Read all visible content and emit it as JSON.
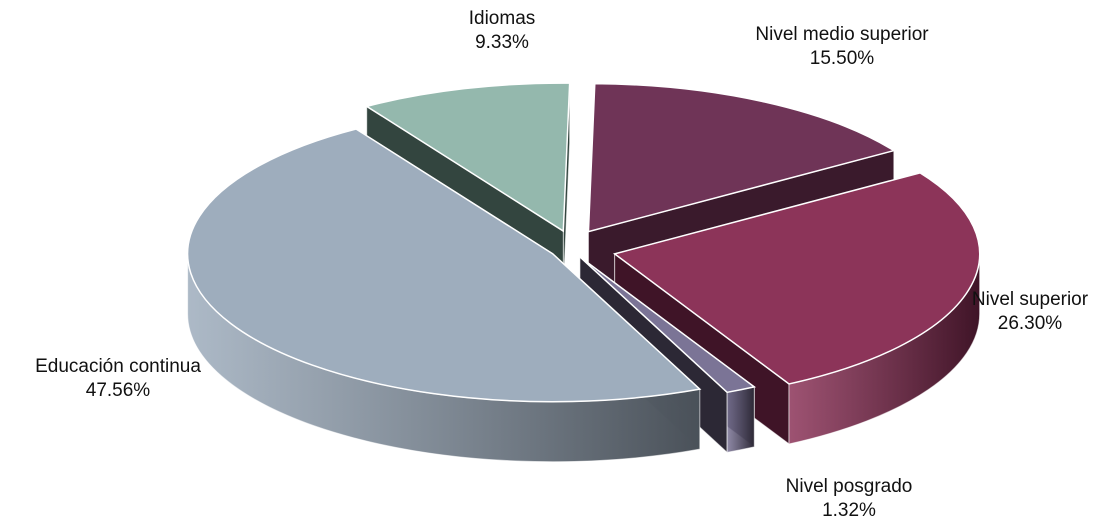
{
  "chart_data": {
    "type": "pie",
    "style": "3d-exploded",
    "legend": "none",
    "slices": [
      {
        "label": "Nivel medio superior",
        "value": 15.5,
        "value_text": "15.50%",
        "color": "#6f3457",
        "side_color": "#3a1a2c"
      },
      {
        "label": "Nivel superior",
        "value": 26.3,
        "value_text": "26.30%",
        "color": "#8c3459",
        "side_color": "#3f1427"
      },
      {
        "label": "Nivel posgrado",
        "value": 1.32,
        "value_text": "1.32%",
        "color": "#7b7496",
        "side_color": "#2c2835"
      },
      {
        "label": "Educación continua",
        "value": 47.56,
        "value_text": "47.56%",
        "color": "#9eadbd",
        "side_color": "#4a5159"
      },
      {
        "label": "Idiomas",
        "value": 9.33,
        "value_text": "9.33%",
        "color": "#94b8ad",
        "side_color": "#33453f"
      }
    ]
  }
}
